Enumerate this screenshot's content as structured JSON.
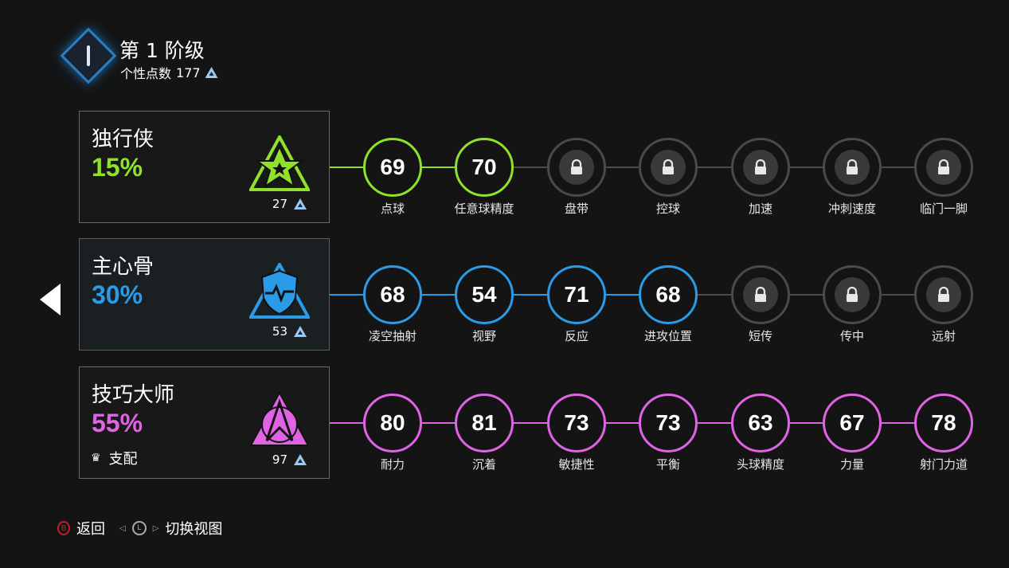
{
  "header": {
    "title": "第 1 阶级",
    "points_label": "个性点数",
    "points": "177",
    "icon": "tier-diamond-icon"
  },
  "rows": [
    {
      "name": "独行侠",
      "percent": "15%",
      "points": "27",
      "color": "#8fe12a",
      "emblem": "star-triangle-icon",
      "unlocked": 2,
      "nodes": [
        {
          "value": "69",
          "label": "点球"
        },
        {
          "value": "70",
          "label": "任意球精度"
        },
        {
          "value": "",
          "label": "盘带"
        },
        {
          "value": "",
          "label": "控球"
        },
        {
          "value": "",
          "label": "加速"
        },
        {
          "value": "",
          "label": "冲刺速度"
        },
        {
          "value": "",
          "label": "临门一脚"
        }
      ]
    },
    {
      "name": "主心骨",
      "percent": "30%",
      "points": "53",
      "color": "#2a9be6",
      "emblem": "shield-pulse-icon",
      "unlocked": 4,
      "selected": true,
      "nodes": [
        {
          "value": "68",
          "label": "凌空抽射"
        },
        {
          "value": "54",
          "label": "视野"
        },
        {
          "value": "71",
          "label": "反应"
        },
        {
          "value": "68",
          "label": "进攻位置"
        },
        {
          "value": "",
          "label": "短传"
        },
        {
          "value": "",
          "label": "传中"
        },
        {
          "value": "",
          "label": "远射"
        }
      ]
    },
    {
      "name": "技巧大师",
      "percent": "55%",
      "points": "97",
      "color": "#e063e6",
      "emblem": "arrow-triangle-icon",
      "unlocked": 7,
      "extra": "支配",
      "extra_icon": "crown-icon",
      "nodes": [
        {
          "value": "80",
          "label": "耐力"
        },
        {
          "value": "81",
          "label": "沉着"
        },
        {
          "value": "73",
          "label": "敏捷性"
        },
        {
          "value": "73",
          "label": "平衡"
        },
        {
          "value": "63",
          "label": "头球精度"
        },
        {
          "value": "67",
          "label": "力量"
        },
        {
          "value": "78",
          "label": "射门力道"
        }
      ]
    }
  ],
  "footer": {
    "back_key": "B",
    "back": "返回",
    "switch_key": "L",
    "switch": "切换视图"
  }
}
